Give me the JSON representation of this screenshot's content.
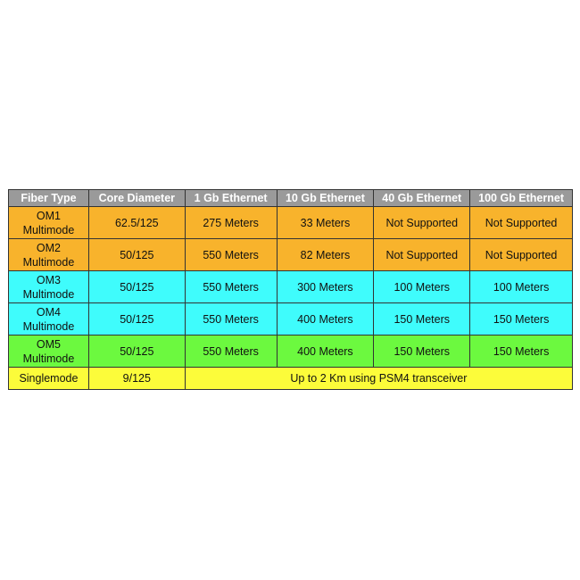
{
  "headers": [
    "Fiber Type",
    "Core Diameter",
    "1 Gb Ethernet",
    "10 Gb Ethernet",
    "40 Gb Ethernet",
    "100 Gb Ethernet"
  ],
  "colors": {
    "header": "#9a9a9a",
    "om1_om2": "#f8b32c",
    "om3_om4": "#3ffcfc",
    "om5": "#6cf93f",
    "singlemode": "#fcfc3a"
  },
  "rows": [
    {
      "type_line1": "OM1",
      "type_line2": "Multimode",
      "core": "62.5/125",
      "g1": "275 Meters",
      "g10": "33 Meters",
      "g40": "Not Supported",
      "g100": "Not Supported"
    },
    {
      "type_line1": "OM2",
      "type_line2": "Multimode",
      "core": "50/125",
      "g1": "550 Meters",
      "g10": "82 Meters",
      "g40": "Not Supported",
      "g100": "Not Supported"
    },
    {
      "type_line1": "OM3",
      "type_line2": "Multimode",
      "core": "50/125",
      "g1": "550 Meters",
      "g10": "300 Meters",
      "g40": "100 Meters",
      "g100": "100 Meters"
    },
    {
      "type_line1": "OM4",
      "type_line2": "Multimode",
      "core": "50/125",
      "g1": "550 Meters",
      "g10": "400 Meters",
      "g40": "150 Meters",
      "g100": "150 Meters"
    },
    {
      "type_line1": "OM5",
      "type_line2": "Multimode",
      "core": "50/125",
      "g1": "550 Meters",
      "g10": "400 Meters",
      "g40": "150 Meters",
      "g100": "150 Meters"
    }
  ],
  "singlemode": {
    "type": "Singlemode",
    "core": "9/125",
    "note": "Up to 2 Km using PSM4 transceiver"
  }
}
